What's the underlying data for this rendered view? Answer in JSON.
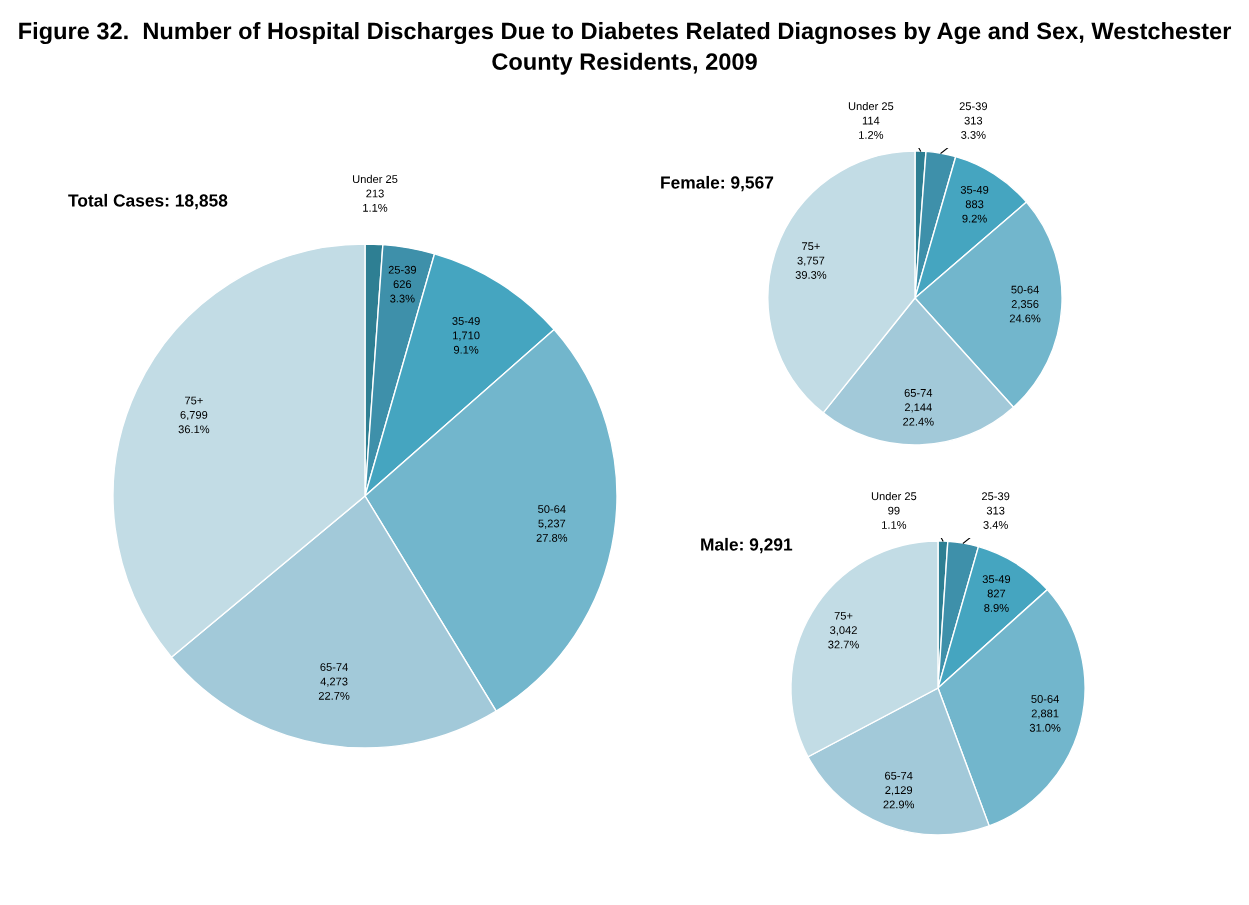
{
  "chart_data": [
    {
      "type": "pie",
      "title": "Figure 32.  Number of Hospital Discharges Due to Diabetes Related Diagnoses by Age and Sex, Westchester County Residents, 2009",
      "subtitle": "Total Cases: 18,858",
      "categories": [
        "Under 25",
        "25-39",
        "35-49",
        "50-64",
        "65-74",
        "75+"
      ],
      "values": [
        213,
        626,
        1710,
        5237,
        4273,
        6799
      ],
      "value_labels": [
        "213\n1.1%",
        "626\n3.3%",
        "1,710\n9.1%",
        "5,237\n27.8%",
        "4,273\n22.7%",
        "6,799\n36.1%"
      ],
      "colors": [
        "#2e7f93",
        "#3e90aa",
        "#45a5c0",
        "#72b6cc",
        "#a2c9d9",
        "#c2dce5"
      ]
    },
    {
      "type": "pie",
      "subtitle": "Female: 9,567",
      "categories": [
        "Under 25",
        "25-39",
        "35-49",
        "50-64",
        "65-74",
        "75+"
      ],
      "values": [
        114,
        313,
        883,
        2356,
        2144,
        3757
      ],
      "value_labels": [
        "114\n1.2%",
        "313\n3.3%",
        "883\n9.2%",
        "2,356\n24.6%",
        "2,144\n22.4%",
        "3,757\n39.3%"
      ],
      "colors": [
        "#2e7f93",
        "#3e90aa",
        "#45a5c0",
        "#72b6cc",
        "#a2c9d9",
        "#c2dce5"
      ]
    },
    {
      "type": "pie",
      "subtitle": "Male: 9,291",
      "categories": [
        "Under 25",
        "25-39",
        "35-49",
        "50-64",
        "65-74",
        "75+"
      ],
      "values": [
        99,
        313,
        827,
        2881,
        2129,
        3042
      ],
      "value_labels": [
        "99\n1.1%",
        "313\n3.4%",
        "827\n8.9%",
        "2,881\n31.0%",
        "2,129\n22.9%",
        "3,042\n32.7%"
      ],
      "colors": [
        "#2e7f93",
        "#3e90aa",
        "#45a5c0",
        "#72b6cc",
        "#a2c9d9",
        "#c2dce5"
      ]
    }
  ]
}
